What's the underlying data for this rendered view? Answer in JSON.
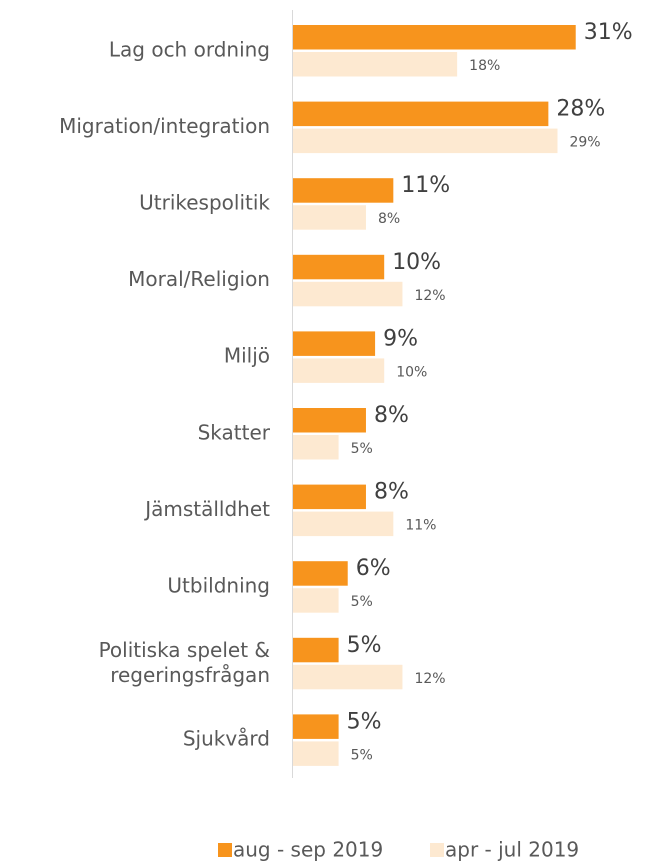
{
  "chart_data": {
    "type": "bar",
    "orientation": "horizontal",
    "categories": [
      "Lag och ordning",
      "Migration/integration",
      "Utrikespolitik",
      "Moral/Religion",
      "Miljö",
      "Skatter",
      "Jämställdhet",
      "Utbildning",
      "Politiska spelet &\nregeringsfrågan",
      "Sjukvård"
    ],
    "series": [
      {
        "name": "aug - sep 2019",
        "color": "#f7941d",
        "values": [
          31,
          28,
          11,
          10,
          9,
          8,
          8,
          6,
          5,
          5
        ],
        "value_labels": [
          "31%",
          "28%",
          "11%",
          "10%",
          "9%",
          "8%",
          "8%",
          "6%",
          "5%",
          "5%"
        ]
      },
      {
        "name": "apr - jul 2019",
        "color": "#fde9d1",
        "values": [
          18,
          29,
          8,
          12,
          10,
          5,
          11,
          5,
          12,
          5
        ],
        "value_labels": [
          "18%",
          "29%",
          "8%",
          "12%",
          "10%",
          "5%",
          "11%",
          "5%",
          "12%",
          "5%"
        ]
      }
    ],
    "legend": "bottom"
  }
}
